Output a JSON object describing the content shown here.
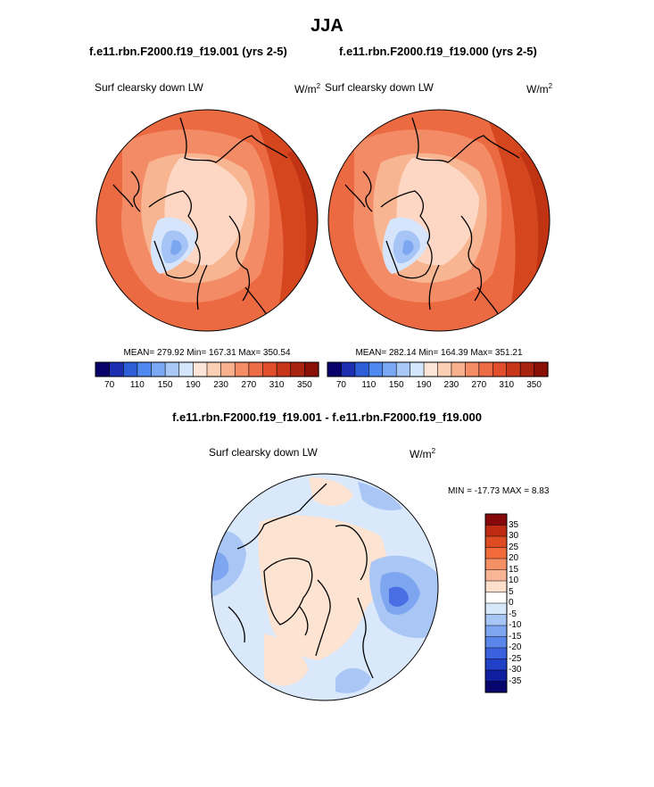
{
  "page": {
    "title": "JJA",
    "subtitle_left": "f.e11.rbn.F2000.f19_f19.001 (yrs 2-5)",
    "subtitle_right": "f.e11.rbn.F2000.f19_f19.000 (yrs 2-5)",
    "diff_title": "f.e11.rbn.F2000.f19_f19.001 - f.e11.rbn.F2000.f19_f19.000"
  },
  "panels": [
    {
      "variable": "Surf clearsky down LW",
      "units_base": "W/m",
      "units_exp": "2",
      "stats": "MEAN= 279.92  Min= 167.31  Max= 350.54"
    },
    {
      "variable": "Surf clearsky down LW",
      "units_base": "W/m",
      "units_exp": "2",
      "stats": "MEAN= 282.14  Min= 164.39  Max= 351.21"
    }
  ],
  "diff_panel": {
    "variable": "Surf clearsky down LW",
    "units_base": "W/m",
    "units_exp": "2",
    "stats": "MIN = -17.73 MAX =   8.83"
  },
  "colorbar_abs": {
    "colors": [
      "#08006b",
      "#1c2fb0",
      "#2e5fd8",
      "#4f88ee",
      "#7aa8f4",
      "#a8c8f8",
      "#d4e6fb",
      "#fde6d8",
      "#fbcfb4",
      "#f8b08d",
      "#f48c66",
      "#ee6c45",
      "#e14e2b",
      "#c8361a",
      "#a8240f",
      "#8a0f05"
    ],
    "tick_labels": [
      "70",
      "110",
      "150",
      "190",
      "230",
      "270",
      "310",
      "350"
    ]
  },
  "colorbar_diff": {
    "colors": [
      "#86080b",
      "#be2a12",
      "#de4b22",
      "#f06a3a",
      "#f58f66",
      "#f8b697",
      "#fddfcc",
      "#ffffff",
      "#d8e8fb",
      "#a8c6f5",
      "#7ea6f0",
      "#5a86ea",
      "#3a62e0",
      "#2040c8",
      "#0f1fa0",
      "#06066e"
    ],
    "tick_labels": [
      "35",
      "30",
      "25",
      "20",
      "15",
      "10",
      "5",
      "0",
      "-5",
      "-10",
      "-15",
      "-20",
      "-25",
      "-30",
      "-35"
    ]
  }
}
